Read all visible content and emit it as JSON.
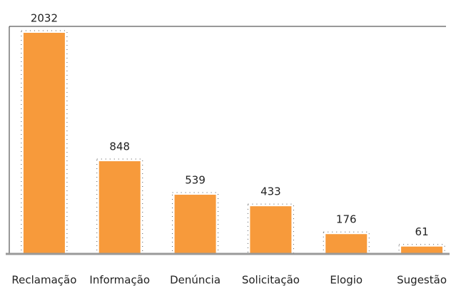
{
  "chart_data": {
    "type": "bar",
    "categories": [
      "Reclamação",
      "Informação",
      "Denúncia",
      "Solicitação",
      "Elogio",
      "Sugestão"
    ],
    "values": [
      2032,
      848,
      539,
      433,
      176,
      61
    ],
    "color": "#f79a3b"
  }
}
